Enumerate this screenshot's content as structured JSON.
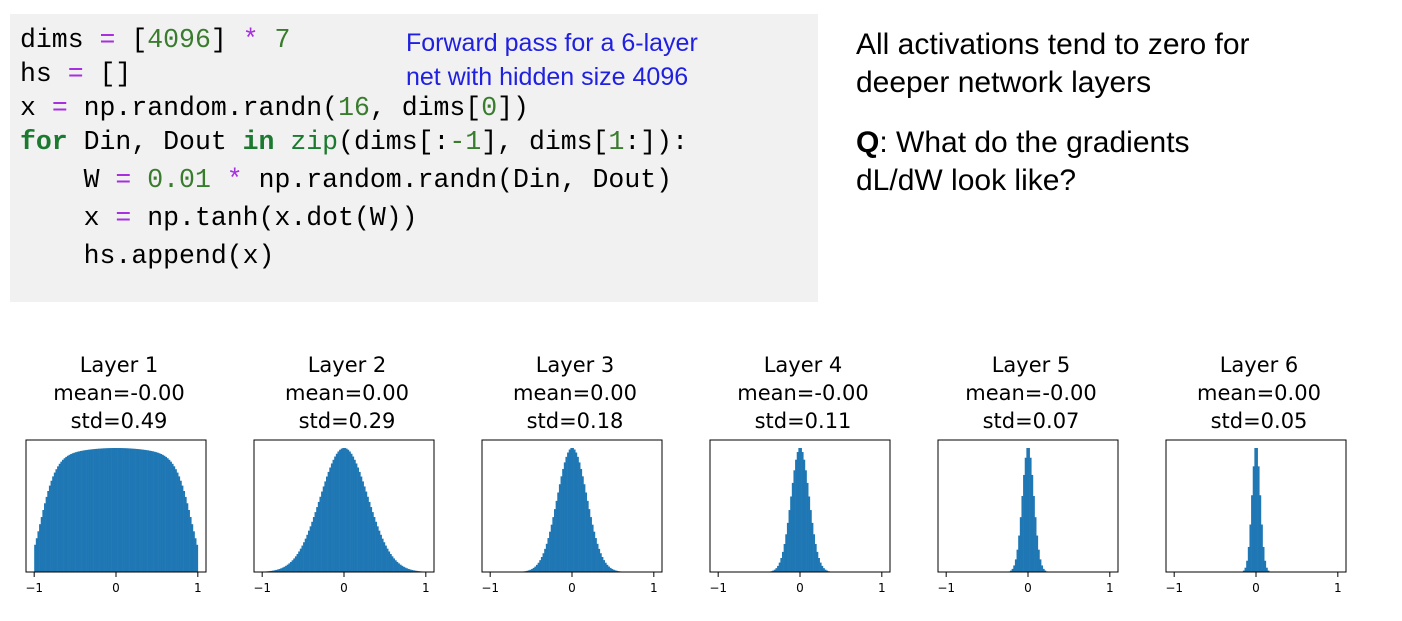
{
  "code": {
    "lines": [
      [
        {
          "t": "dims ",
          "c": "pl"
        },
        {
          "t": "=",
          "c": "op"
        },
        {
          "t": " [",
          "c": "pl"
        },
        {
          "t": "4096",
          "c": "num"
        },
        {
          "t": "] ",
          "c": "pl"
        },
        {
          "t": "*",
          "c": "op"
        },
        {
          "t": " ",
          "c": "pl"
        },
        {
          "t": "7",
          "c": "num"
        }
      ],
      [
        {
          "t": "hs ",
          "c": "pl"
        },
        {
          "t": "=",
          "c": "op"
        },
        {
          "t": " []",
          "c": "pl"
        }
      ],
      [
        {
          "t": "x ",
          "c": "pl"
        },
        {
          "t": "=",
          "c": "op"
        },
        {
          "t": " np.random.randn(",
          "c": "pl"
        },
        {
          "t": "16",
          "c": "num"
        },
        {
          "t": ", dims[",
          "c": "pl"
        },
        {
          "t": "0",
          "c": "num"
        },
        {
          "t": "])",
          "c": "pl"
        }
      ],
      [
        {
          "t": "for",
          "c": "kw"
        },
        {
          "t": " Din, Dout ",
          "c": "pl"
        },
        {
          "t": "in",
          "c": "kw"
        },
        {
          "t": " ",
          "c": "pl"
        },
        {
          "t": "zip",
          "c": "bi"
        },
        {
          "t": "(dims[:",
          "c": "pl"
        },
        {
          "t": "-1",
          "c": "num"
        },
        {
          "t": "], dims[",
          "c": "pl"
        },
        {
          "t": "1",
          "c": "num"
        },
        {
          "t": ":]):",
          "c": "pl"
        }
      ],
      [
        {
          "t": "    W ",
          "c": "pl"
        },
        {
          "t": "=",
          "c": "op"
        },
        {
          "t": " ",
          "c": "pl"
        },
        {
          "t": "0.01",
          "c": "num"
        },
        {
          "t": " ",
          "c": "pl"
        },
        {
          "t": "*",
          "c": "op"
        },
        {
          "t": " np.random.randn(Din, Dout)",
          "c": "pl"
        }
      ],
      [
        {
          "t": "    x ",
          "c": "pl"
        },
        {
          "t": "=",
          "c": "op"
        },
        {
          "t": " np.tanh(x.dot(W))",
          "c": "pl"
        }
      ],
      [
        {
          "t": "    hs.append(x)",
          "c": "pl"
        }
      ]
    ]
  },
  "annotation": {
    "line1": "Forward pass for a 6-layer",
    "line2": "net with hidden size 4096"
  },
  "notes": {
    "statement_line1": "All activations tend to zero for",
    "statement_line2": "deeper network layers",
    "question_label": "Q",
    "question_line1": ": What do the gradients",
    "question_line2": "dL/dW look like?"
  },
  "colors": {
    "bar": "#1f77b4",
    "operator": "#a630e0",
    "number": "#3a7c2e",
    "keyword": "#1b7a2f",
    "annotation": "#2020e0",
    "code_background": "#f1f1f1"
  },
  "chart_data": [
    {
      "type": "bar",
      "title": "Layer 1",
      "subtitle1": "mean=-0.00",
      "subtitle2": "std=0.49",
      "mean": 0.0,
      "std": 0.49,
      "xlim": [
        -1.1,
        1.1
      ],
      "xticks": [
        -1,
        0,
        1
      ],
      "xtick_labels": [
        "−1",
        "0",
        "1"
      ]
    },
    {
      "type": "bar",
      "title": "Layer 2",
      "subtitle1": "mean=0.00",
      "subtitle2": "std=0.29",
      "mean": 0.0,
      "std": 0.29,
      "xlim": [
        -1.1,
        1.1
      ],
      "xticks": [
        -1,
        0,
        1
      ],
      "xtick_labels": [
        "−1",
        "0",
        "1"
      ]
    },
    {
      "type": "bar",
      "title": "Layer 3",
      "subtitle1": "mean=0.00",
      "subtitle2": "std=0.18",
      "mean": 0.0,
      "std": 0.18,
      "xlim": [
        -1.1,
        1.1
      ],
      "xticks": [
        -1,
        0,
        1
      ],
      "xtick_labels": [
        "−1",
        "0",
        "1"
      ]
    },
    {
      "type": "bar",
      "title": "Layer 4",
      "subtitle1": "mean=-0.00",
      "subtitle2": "std=0.11",
      "mean": 0.0,
      "std": 0.11,
      "xlim": [
        -1.1,
        1.1
      ],
      "xticks": [
        -1,
        0,
        1
      ],
      "xtick_labels": [
        "−1",
        "0",
        "1"
      ]
    },
    {
      "type": "bar",
      "title": "Layer 5",
      "subtitle1": "mean=-0.00",
      "subtitle2": "std=0.07",
      "mean": 0.0,
      "std": 0.07,
      "xlim": [
        -1.1,
        1.1
      ],
      "xticks": [
        -1,
        0,
        1
      ],
      "xtick_labels": [
        "−1",
        "0",
        "1"
      ]
    },
    {
      "type": "bar",
      "title": "Layer 6",
      "subtitle1": "mean=0.00",
      "subtitle2": "std=0.05",
      "mean": 0.0,
      "std": 0.05,
      "xlim": [
        -1.1,
        1.1
      ],
      "xticks": [
        -1,
        0,
        1
      ],
      "xtick_labels": [
        "−1",
        "0",
        "1"
      ]
    }
  ]
}
